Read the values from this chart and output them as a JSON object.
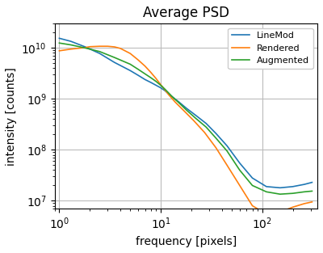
{
  "title": "Average PSD",
  "xlabel": "frequency [pixels]",
  "ylabel": "intensity [counts]",
  "xlim": [
    0.9,
    350
  ],
  "ylim": [
    7000000.0,
    30000000000.0
  ],
  "legend_labels": [
    "LineMod",
    "Rendered",
    "Augmented"
  ],
  "legend_colors": [
    "#1f77b4",
    "#ff7f0e",
    "#2ca02c"
  ],
  "grid_color": "#bbbbbb",
  "grid_linewidth": 0.8,
  "linemod_x": [
    1.0,
    1.3,
    1.8,
    2.5,
    3.5,
    5.0,
    6.0,
    7.0,
    8.0,
    9.0,
    10.0,
    11.0,
    12.0,
    13.0,
    15.0,
    18.0,
    22.0,
    28.0,
    35.0,
    45.0,
    60.0,
    80.0,
    110.0,
    150.0,
    200.0,
    260.0,
    310.0
  ],
  "linemod_y": [
    15500000000.0,
    13500000000.0,
    10500000000.0,
    7800000000.0,
    5200000000.0,
    3600000000.0,
    2900000000.0,
    2400000000.0,
    2100000000.0,
    1850000000.0,
    1650000000.0,
    1450000000.0,
    1250000000.0,
    1100000000.0,
    880000000.0,
    650000000.0,
    480000000.0,
    330000000.0,
    210000000.0,
    120000000.0,
    55000000.0,
    28000000.0,
    19000000.0,
    18000000.0,
    19000000.0,
    21000000.0,
    23000000.0
  ],
  "rendered_x": [
    1.0,
    1.3,
    1.8,
    2.0,
    2.5,
    3.0,
    3.5,
    4.0,
    5.0,
    6.0,
    7.0,
    8.0,
    9.0,
    10.0,
    11.0,
    12.0,
    14.0,
    17.0,
    21.0,
    27.0,
    35.0,
    45.0,
    60.0,
    80.0,
    110.0,
    150.0,
    200.0,
    260.0,
    310.0
  ],
  "rendered_y": [
    8800000000.0,
    9500000000.0,
    10200000000.0,
    10600000000.0,
    10800000000.0,
    10800000000.0,
    10500000000.0,
    9800000000.0,
    7800000000.0,
    5800000000.0,
    4400000000.0,
    3300000000.0,
    2500000000.0,
    1900000000.0,
    1500000000.0,
    1200000000.0,
    850000000.0,
    580000000.0,
    380000000.0,
    220000000.0,
    110000000.0,
    50000000.0,
    20000000.0,
    8000000.0,
    5500000.0,
    6000000.0,
    7500000.0,
    8800000.0,
    9500000.0
  ],
  "augmented_x": [
    1.0,
    1.3,
    1.8,
    2.5,
    3.5,
    5.0,
    6.0,
    7.0,
    8.0,
    9.0,
    10.0,
    11.0,
    12.0,
    13.0,
    15.0,
    18.0,
    22.0,
    28.0,
    35.0,
    45.0,
    60.0,
    80.0,
    110.0,
    150.0,
    200.0,
    260.0,
    310.0
  ],
  "augmented_y": [
    12500000000.0,
    11500000000.0,
    10000000000.0,
    8500000000.0,
    6500000000.0,
    4800000000.0,
    3800000000.0,
    3100000000.0,
    2600000000.0,
    2200000000.0,
    1850000000.0,
    1550000000.0,
    1300000000.0,
    1100000000.0,
    850000000.0,
    600000000.0,
    420000000.0,
    280000000.0,
    170000000.0,
    95000000.0,
    40000000.0,
    20000000.0,
    15000000.0,
    13500000.0,
    14000000.0,
    15000000.0,
    15500000.0
  ]
}
